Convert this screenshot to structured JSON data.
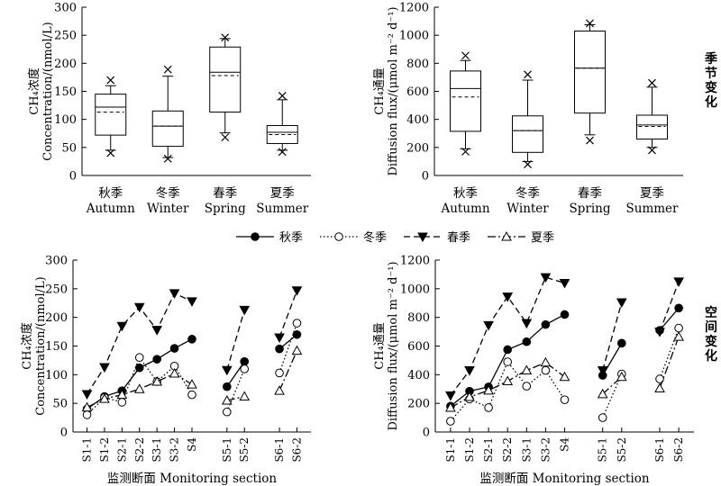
{
  "legend": [
    {
      "label": "秋季",
      "style": "solid",
      "marker": "filled-circle"
    },
    {
      "label": "冬季",
      "style": "dotted",
      "marker": "open-circle"
    },
    {
      "label": "春季",
      "style": "dashed",
      "marker": "filled-triangle-down"
    },
    {
      "label": "夏季",
      "style": "dashdot",
      "marker": "open-triangle-up"
    }
  ],
  "side_labels": {
    "seasonal": "季节变化",
    "spatial": "空间变化"
  },
  "chart_data": [
    {
      "id": "box-conc",
      "type": "box",
      "ylabel_lines": [
        "CH₄浓度",
        "Concentration/(nmol/L)"
      ],
      "ylim": [
        0,
        300
      ],
      "yticks": [
        0,
        50,
        100,
        150,
        200,
        250,
        300
      ],
      "categories": [
        {
          "zh": "秋季",
          "en": "Autumn",
          "q1": 72,
          "q3": 145,
          "median": 122,
          "mean": 113,
          "whisker_low": 45,
          "whisker_high": 160,
          "min": 40,
          "max": 170
        },
        {
          "zh": "冬季",
          "en": "Winter",
          "q1": 52,
          "q3": 115,
          "median": 88,
          "mean": 88,
          "whisker_low": 32,
          "whisker_high": 177,
          "min": 30,
          "max": 189
        },
        {
          "zh": "春季",
          "en": "Spring",
          "q1": 113,
          "q3": 229,
          "median": 184,
          "mean": 178,
          "whisker_low": 76,
          "whisker_high": 244,
          "min": 68,
          "max": 246
        },
        {
          "zh": "夏季",
          "en": "Summer",
          "q1": 57,
          "q3": 89,
          "median": 77,
          "mean": 73,
          "whisker_low": 45,
          "whisker_high": 135,
          "min": 42,
          "max": 142
        }
      ]
    },
    {
      "id": "box-flux",
      "type": "box",
      "ylabel_lines": [
        "CH₄通量",
        "Diffusion flux/(μmol m⁻² d⁻¹)"
      ],
      "ylim": [
        0,
        1200
      ],
      "yticks": [
        0,
        200,
        400,
        600,
        800,
        1000,
        1200
      ],
      "categories": [
        {
          "zh": "秋季",
          "en": "Autumn",
          "q1": 315,
          "q3": 745,
          "median": 620,
          "mean": 560,
          "whisker_low": 190,
          "whisker_high": 820,
          "min": 170,
          "max": 855
        },
        {
          "zh": "冬季",
          "en": "Winter",
          "q1": 165,
          "q3": 425,
          "median": 320,
          "mean": 320,
          "whisker_low": 100,
          "whisker_high": 680,
          "min": 80,
          "max": 720
        },
        {
          "zh": "春季",
          "en": "Spring",
          "q1": 445,
          "q3": 1030,
          "median": 765,
          "mean": 765,
          "whisker_low": 290,
          "whisker_high": 1075,
          "min": 250,
          "max": 1085
        },
        {
          "zh": "夏季",
          "en": "Summer",
          "q1": 260,
          "q3": 430,
          "median": 360,
          "mean": 350,
          "whisker_low": 200,
          "whisker_high": 630,
          "min": 180,
          "max": 660
        }
      ]
    },
    {
      "id": "line-conc",
      "type": "line",
      "ylabel_lines": [
        "CH₄浓度",
        "Concentration/(nmol/L)"
      ],
      "xlabel": "监测断面 Monitoring section",
      "ylim": [
        0,
        300
      ],
      "yticks": [
        0,
        50,
        100,
        150,
        200,
        250,
        300
      ],
      "categories": [
        "S1-1",
        "S1-2",
        "S2-1",
        "S2-2",
        "S3-1",
        "S3-2",
        "S4",
        "",
        "S5-1",
        "S5-2",
        "",
        "S6-1",
        "S6-2"
      ],
      "groups": [
        [
          0,
          6
        ],
        [
          8,
          9
        ],
        [
          11,
          12
        ]
      ],
      "series": [
        {
          "name": "秋季",
          "values": [
            40,
            62,
            72,
            112,
            127,
            146,
            162,
            null,
            79,
            123,
            null,
            145,
            170
          ]
        },
        {
          "name": "冬季",
          "values": [
            30,
            60,
            52,
            130,
            88,
            115,
            65,
            null,
            35,
            110,
            null,
            103,
            190
          ]
        },
        {
          "name": "春季",
          "values": [
            66,
            113,
            185,
            218,
            178,
            242,
            228,
            null,
            108,
            213,
            null,
            165,
            247
          ]
        },
        {
          "name": "夏季",
          "values": [
            43,
            58,
            65,
            75,
            88,
            102,
            83,
            null,
            55,
            62,
            null,
            72,
            142
          ]
        }
      ]
    },
    {
      "id": "line-flux",
      "type": "line",
      "ylabel_lines": [
        "CH₄通量",
        "Diffusion flux/(μmol m⁻² d⁻¹)"
      ],
      "xlabel": "监测断面 Monitoring section",
      "ylim": [
        0,
        1200
      ],
      "yticks": [
        0,
        200,
        400,
        600,
        800,
        1000,
        1200
      ],
      "categories": [
        "S1-1",
        "S1-2",
        "S2-1",
        "S2-2",
        "S3-1",
        "S3-2",
        "S4",
        "",
        "S5-1",
        "S5-2",
        "",
        "S6-1",
        "S6-2"
      ],
      "groups": [
        [
          0,
          6
        ],
        [
          8,
          9
        ],
        [
          11,
          12
        ]
      ],
      "series": [
        {
          "name": "秋季",
          "values": [
            180,
            285,
            315,
            575,
            630,
            750,
            820,
            null,
            395,
            620,
            null,
            710,
            865
          ]
        },
        {
          "name": "冬季",
          "values": [
            75,
            230,
            170,
            490,
            320,
            430,
            225,
            null,
            100,
            405,
            null,
            370,
            725
          ]
        },
        {
          "name": "春季",
          "values": [
            255,
            430,
            745,
            945,
            760,
            1080,
            1040,
            null,
            430,
            905,
            null,
            700,
            1050
          ]
        },
        {
          "name": "夏季",
          "values": [
            170,
            245,
            290,
            355,
            430,
            485,
            385,
            null,
            265,
            385,
            null,
            305,
            665
          ]
        }
      ]
    }
  ]
}
